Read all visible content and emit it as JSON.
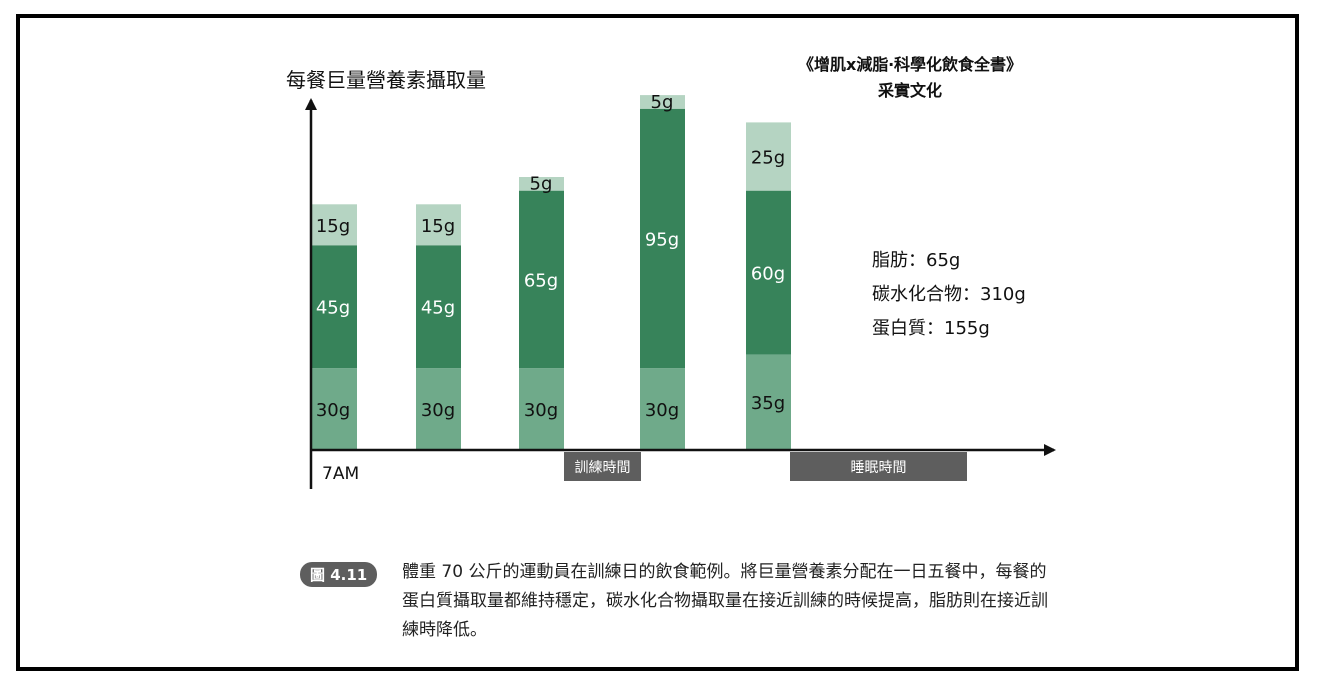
{
  "source": {
    "book": "《增肌x減脂‧科學化飲食全書》",
    "publisher": "采實文化"
  },
  "legend": {
    "fat": "脂肪：65g",
    "carbs": "碳水化合物：310g",
    "protein": "蛋白質：155g"
  },
  "caption": {
    "badge": "圖 4.11",
    "text": "體重 70 公斤的運動員在訓練日的飲食範例。將巨量營養素分配在一日五餐中，每餐的蛋白質攝取量都維持穩定，碳水化合物攝取量在接近訓練的時候提高，脂肪則在接近訓練時降低。"
  },
  "chart_data": {
    "type": "bar",
    "stacked": true,
    "ylabel": "每餐巨量營養素攝取量",
    "xlabel": "",
    "x_start_label": "7AM",
    "time_bands": [
      {
        "label": "訓練時間"
      },
      {
        "label": "睡眠時間"
      }
    ],
    "meals": 5,
    "series": [
      {
        "key": "protein",
        "color": "#6faa8a",
        "values": [
          30,
          30,
          30,
          30,
          35
        ],
        "labels": [
          "30g",
          "30g",
          "30g",
          "30g",
          "35g"
        ]
      },
      {
        "key": "carbs",
        "color": "#37835a",
        "values": [
          45,
          45,
          65,
          95,
          60
        ],
        "labels": [
          "45g",
          "45g",
          "65g",
          "95g",
          "60g"
        ]
      },
      {
        "key": "fat",
        "color": "#b5d4c2",
        "values": [
          15,
          15,
          5,
          5,
          25
        ],
        "labels": [
          "15g",
          "15g",
          "5g",
          "5g",
          "25g"
        ]
      }
    ],
    "colors": {
      "protein": "#6faa8a",
      "carbs": "#37835a",
      "fat": "#b5d4c2",
      "band": "#5e5e5e",
      "axis": "#111111"
    }
  }
}
